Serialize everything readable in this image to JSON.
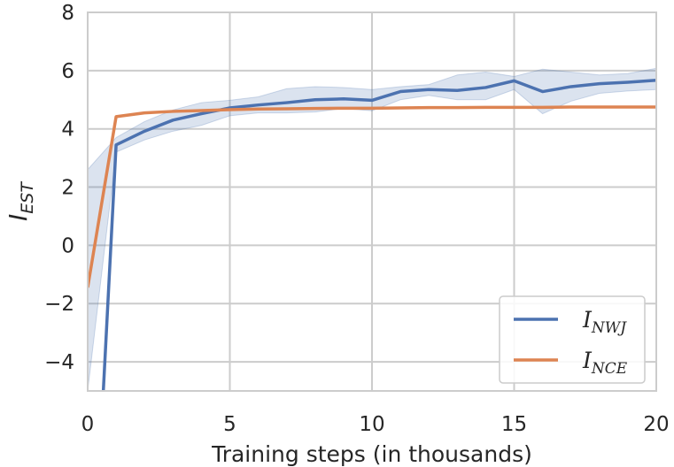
{
  "chart_data": {
    "type": "line",
    "xlabel": "Training steps (in thousands)",
    "ylabel": {
      "main": "I",
      "sub": "EST"
    },
    "xlim": [
      0,
      20
    ],
    "ylim": [
      -5,
      8
    ],
    "xticks": [
      0,
      5,
      10,
      15,
      20
    ],
    "yticks": [
      -4,
      -2,
      0,
      2,
      4,
      6,
      8
    ],
    "ytick_labels": [
      "−4",
      "−2",
      "0",
      "2",
      "4",
      "6",
      "8"
    ],
    "grid": true,
    "legend": {
      "placement": "bottom-right"
    },
    "series": [
      {
        "name": "I_NWJ",
        "label_main": "I",
        "label_sub": "NWJ",
        "color": "#4c72b0",
        "x": [
          0.55,
          1,
          2,
          3,
          4,
          5,
          6,
          7,
          8,
          9,
          10,
          11,
          12,
          13,
          14,
          15,
          16,
          17,
          18,
          19,
          20
        ],
        "y": [
          -5.0,
          3.45,
          3.92,
          4.3,
          4.52,
          4.72,
          4.82,
          4.9,
          5.0,
          5.03,
          4.98,
          5.28,
          5.35,
          5.32,
          5.42,
          5.65,
          5.28,
          5.45,
          5.55,
          5.6,
          5.67
        ],
        "band_upper": [
          2.6,
          3.7,
          4.25,
          4.65,
          4.9,
          4.98,
          5.1,
          5.38,
          5.45,
          5.42,
          5.35,
          5.45,
          5.52,
          5.85,
          5.95,
          5.8,
          6.05,
          5.95,
          5.85,
          5.9,
          6.08
        ],
        "band_lower": [
          -5.0,
          3.2,
          3.62,
          3.92,
          4.12,
          4.45,
          4.55,
          4.55,
          4.58,
          4.7,
          4.62,
          5.0,
          5.15,
          5.0,
          5.0,
          5.35,
          4.52,
          4.95,
          5.22,
          5.3,
          5.35
        ],
        "band_x": [
          0,
          1,
          2,
          3,
          4,
          5,
          6,
          7,
          8,
          9,
          10,
          11,
          12,
          13,
          14,
          15,
          16,
          17,
          18,
          19,
          20
        ]
      },
      {
        "name": "I_NCE",
        "label_main": "I",
        "label_sub": "NCE",
        "color": "#dd8452",
        "x": [
          0,
          1,
          2,
          3,
          4,
          5,
          6,
          7,
          8,
          9,
          10,
          11,
          12,
          13,
          14,
          15,
          16,
          17,
          18,
          19,
          20
        ],
        "y": [
          -1.45,
          4.42,
          4.55,
          4.6,
          4.63,
          4.66,
          4.68,
          4.69,
          4.7,
          4.71,
          4.71,
          4.72,
          4.73,
          4.73,
          4.74,
          4.74,
          4.74,
          4.75,
          4.75,
          4.75,
          4.75
        ]
      }
    ]
  }
}
